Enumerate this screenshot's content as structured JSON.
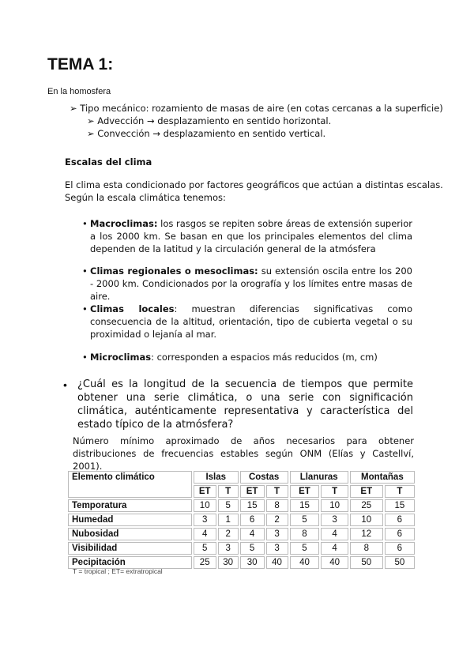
{
  "title": "TEMA 1:",
  "intro": "En la homosfera",
  "tipo": "➢ Tipo mecánico: rozamiento de masas de aire (en cotas cercanas a la superficie)",
  "sub": [
    "➢ Advección → desplazamiento en sentido horizontal.",
    "➢ Convección → desplazamiento en sentido vertical."
  ],
  "heading": "Escalas del clima",
  "para": [
    "El clima esta condicionado por factores geográficos que actúan a distintas escalas.",
    "Según la escala climática tenemos:"
  ],
  "scales": [
    {
      "term": "Macroclimas:",
      "text": " los rasgos se repiten sobre áreas de extensión superior a los 2000 km. Se basan en que los principales elementos del clima dependen de la latitud y la circulación general de la atmósfera"
    },
    {
      "term": "Climas regionales o mesoclimas:",
      "text": " su extensión oscila entre los 200 - 2000 km. Condicionados por la orografía y los límites entre masas de aire."
    },
    {
      "term": "Climas locales",
      "text": ": muestran diferencias significativas como consecuencia de la altitud, orientación, tipo de cubierta vegetal o su proximidad o lejanía al mar."
    },
    {
      "term": "Microclimas",
      "text": ": corresponden a espacios más reducidos (m, cm)"
    }
  ],
  "question": "¿Cuál es la longitud de la secuencia de tiempos que permite obtener una serie climática, o una serie con significación climática, auténticamente representativa y característica del estado típico de la atmósfera?",
  "table_caption": "Número mínimo aproximado de años necesarios para obtener distribuciones de frecuencias estables según ONM (Elías y Castellví, 2001).",
  "table": {
    "corner": "Elemento climático",
    "groups": [
      "Islas",
      "Costas",
      "Llanuras",
      "Montañas"
    ],
    "sub": [
      "ET",
      "T",
      "ET",
      "T",
      "ET",
      "T",
      "ET",
      "T"
    ],
    "rows": [
      {
        "label": "Temporatura",
        "values": [
          "10",
          "5",
          "15",
          "8",
          "15",
          "10",
          "25",
          "15"
        ]
      },
      {
        "label": "Humedad",
        "values": [
          "3",
          "1",
          "6",
          "2",
          "5",
          "3",
          "10",
          "6"
        ]
      },
      {
        "label": "Nubosidad",
        "values": [
          "4",
          "2",
          "4",
          "3",
          "8",
          "4",
          "12",
          "6"
        ]
      },
      {
        "label": "Visibilidad",
        "values": [
          "5",
          "3",
          "5",
          "3",
          "5",
          "4",
          "8",
          "6"
        ]
      },
      {
        "label": "Pecipitación",
        "values": [
          "25",
          "30",
          "30",
          "40",
          "40",
          "40",
          "50",
          "50"
        ]
      }
    ]
  },
  "footnote": "T = tropical ; ET= extratropical"
}
